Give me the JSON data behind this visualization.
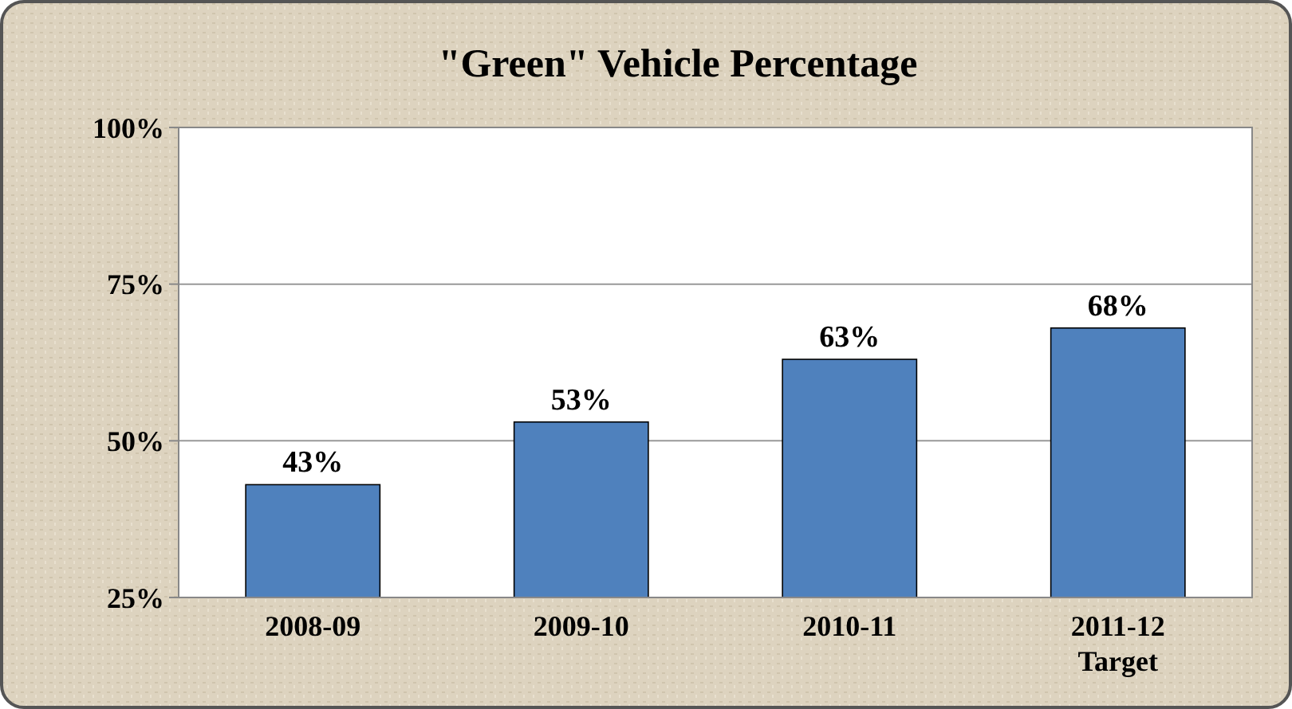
{
  "chart_data": {
    "type": "bar",
    "title": "\"Green\" Vehicle Percentage",
    "categories": [
      "2008-09",
      "2009-10",
      "2010-11",
      "2011-12 Target"
    ],
    "values": [
      43,
      53,
      63,
      68
    ],
    "color": "#4f81bd",
    "value_labels": [
      "43%",
      "53%",
      "63%",
      "68%"
    ],
    "ylim": [
      25,
      100
    ],
    "yticks": [
      {
        "value": 25,
        "label": "25%"
      },
      {
        "value": 50,
        "label": "50%"
      },
      {
        "value": 75,
        "label": "75%"
      },
      {
        "value": 100,
        "label": "100%"
      }
    ],
    "grid": "y"
  }
}
